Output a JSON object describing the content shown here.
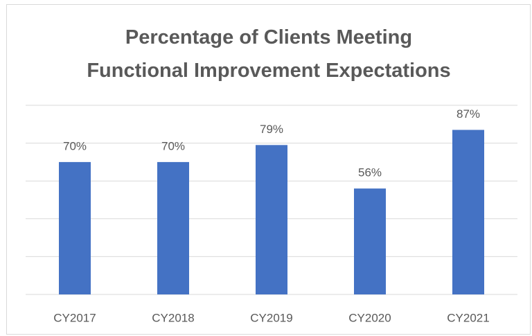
{
  "chart_data": {
    "type": "bar",
    "title": "Percentage of Clients Meeting Functional Improvement Expectations",
    "categories": [
      "CY2017",
      "CY2018",
      "CY2019",
      "CY2020",
      "CY2021"
    ],
    "values": [
      70,
      70,
      79,
      56,
      87
    ],
    "value_labels": [
      "70%",
      "70%",
      "79%",
      "56%",
      "87%"
    ],
    "color": "#4472c4",
    "ylim": [
      0,
      100
    ],
    "yticks": [
      0,
      20,
      40,
      60,
      80,
      100
    ],
    "grid": true
  }
}
